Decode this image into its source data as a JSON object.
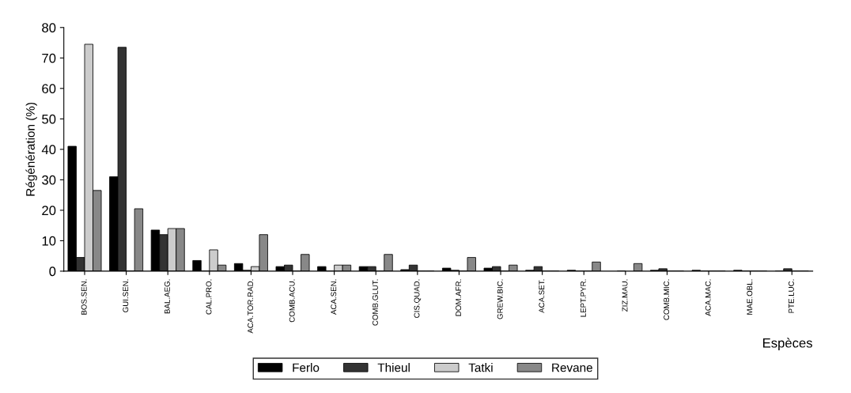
{
  "chart_data": {
    "type": "bar",
    "xlabel": "Espèces",
    "ylabel": "Régénération (%)",
    "categories": [
      "BOS.SEN.",
      "GUI.SEN.",
      "BAL.AEG.",
      "CAL.PRO.",
      "ACA.TOR.RAD.",
      "COMB.ACU.",
      "ACA.SEN.",
      "COMB.GLUT.",
      "CIS.QUAD.",
      "DOM.AFR.",
      "GREW.BIC.",
      "ACA.SET.",
      "LEPT.PYR.",
      "ZIZ.MAU.",
      "COMB.MIC.",
      "ACA.MAC.",
      "MAE.OBL.",
      "PTE.LUC."
    ],
    "series": [
      {
        "name": "Ferlo",
        "color": "#000000",
        "values": [
          41,
          31,
          13.5,
          3.5,
          2.5,
          1.5,
          1.5,
          1.5,
          0.5,
          1,
          1,
          0.3,
          0.3,
          null,
          0.3,
          0.3,
          0.3,
          0
        ]
      },
      {
        "name": "Thieul",
        "color": "#333333",
        "values": [
          4.5,
          73.5,
          12,
          0,
          0.3,
          2,
          0,
          1.5,
          2,
          0.3,
          1.5,
          1.5,
          0,
          0,
          0.8,
          0,
          0,
          0.8
        ]
      },
      {
        "name": "Tatki",
        "color": "#cccccc",
        "values": [
          74.5,
          0,
          14,
          7,
          1.5,
          0,
          2,
          0,
          0,
          0,
          0,
          0,
          0,
          null,
          0,
          0,
          0,
          0
        ]
      },
      {
        "name": "Revane",
        "color": "#888888",
        "values": [
          26.5,
          20.5,
          14,
          2,
          12,
          5.5,
          2,
          5.5,
          0,
          4.5,
          2,
          0,
          3,
          2.5,
          0,
          0,
          0,
          0
        ]
      }
    ],
    "ylim": [
      0,
      80
    ],
    "yticks": [
      0,
      10,
      20,
      30,
      40,
      50,
      60,
      70,
      80
    ],
    "grid": false,
    "legend": "bottom"
  }
}
